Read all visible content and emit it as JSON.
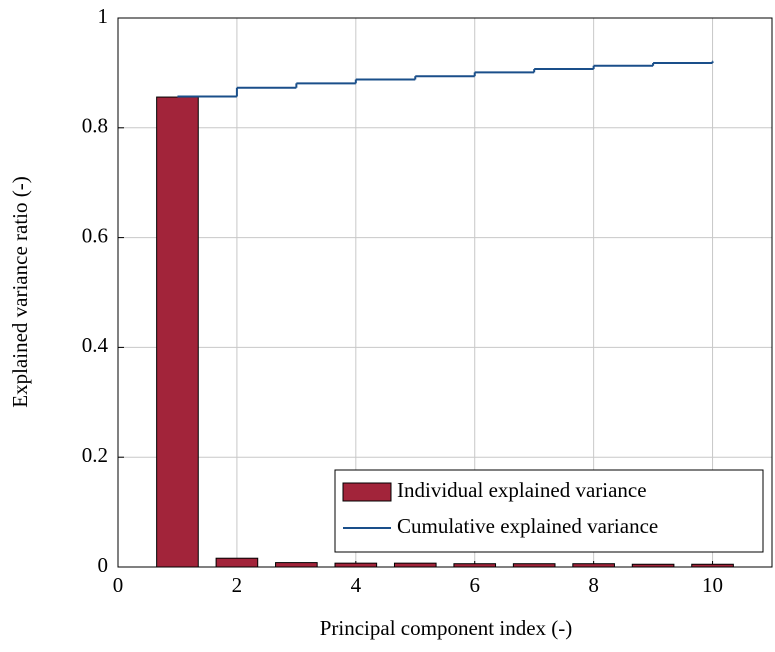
{
  "chart_data": {
    "type": "bar",
    "xlabel": "Principal component index (-)",
    "ylabel": "Explained variance ratio (-)",
    "x": [
      1,
      2,
      3,
      4,
      5,
      6,
      7,
      8,
      9,
      10
    ],
    "series": [
      {
        "name": "Individual explained variance",
        "type": "bar",
        "color": "#a2243a",
        "values": [
          0.856,
          0.016,
          0.008,
          0.007,
          0.007,
          0.006,
          0.006,
          0.006,
          0.005,
          0.005
        ]
      },
      {
        "name": "Cumulative explained variance",
        "type": "step",
        "color": "#1a4f8a",
        "values": [
          0.857,
          0.873,
          0.881,
          0.888,
          0.894,
          0.901,
          0.907,
          0.913,
          0.918,
          0.921
        ]
      }
    ],
    "xlim": [
      0,
      11
    ],
    "ylim": [
      0,
      1
    ],
    "xticks": [
      0,
      2,
      4,
      6,
      8,
      10
    ],
    "yticks": [
      0,
      0.2,
      0.4,
      0.6,
      0.8,
      1
    ],
    "grid": true,
    "legend": "lower right"
  }
}
